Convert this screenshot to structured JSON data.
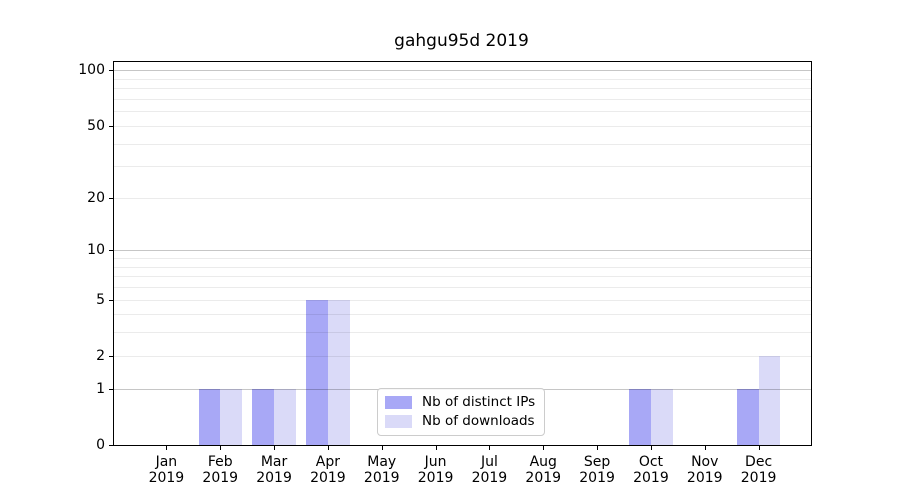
{
  "chart_data": {
    "type": "bar",
    "title": "gahgu95d 2019",
    "categories": [
      "Jan",
      "Feb",
      "Mar",
      "Apr",
      "May",
      "Jun",
      "Jul",
      "Aug",
      "Sep",
      "Oct",
      "Nov",
      "Dec"
    ],
    "x_tick_year": "2019",
    "series": [
      {
        "name": "Nb of distinct IPs",
        "color": "#a8a8f6",
        "values": [
          0,
          1,
          1,
          5,
          0,
          0,
          0,
          0,
          0,
          1,
          0,
          1
        ]
      },
      {
        "name": "Nb of downloads",
        "color": "#dadaf8",
        "values": [
          0,
          1,
          1,
          5,
          0,
          0,
          0,
          0,
          0,
          1,
          0,
          2
        ]
      }
    ],
    "y_ticks": [
      100,
      50,
      20,
      10,
      5,
      2,
      1,
      0
    ],
    "y_scale": "log1p",
    "ylim": [
      0,
      111
    ],
    "gridlines": {
      "major": [
        1,
        10,
        100
      ],
      "minor": [
        2,
        3,
        4,
        5,
        6,
        7,
        8,
        9,
        20,
        30,
        40,
        50,
        60,
        70,
        80,
        90
      ]
    },
    "grid": "horizontal",
    "legend_position": "lower center",
    "xlabel": "",
    "ylabel": ""
  }
}
